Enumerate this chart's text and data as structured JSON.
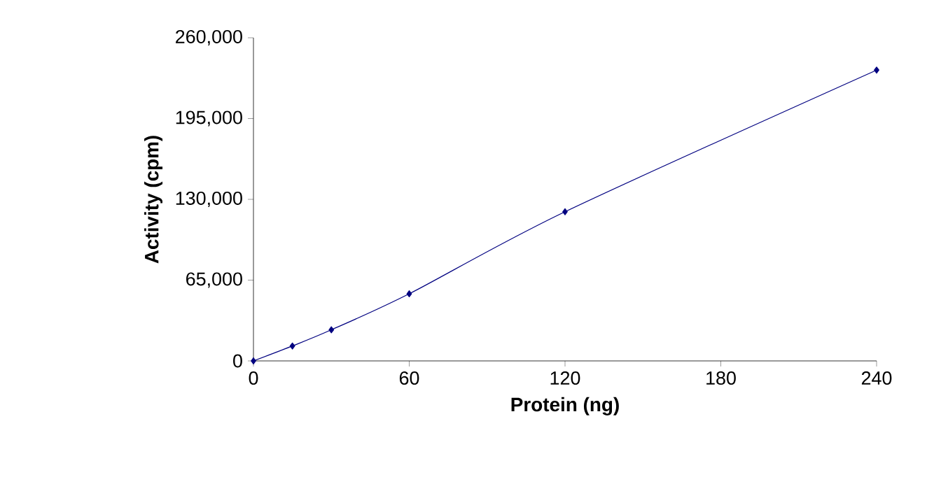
{
  "chart_data": {
    "type": "line",
    "xlabel": "Protein (ng)",
    "ylabel": "Activity (cpm)",
    "x": [
      0,
      15,
      30,
      60,
      120,
      240
    ],
    "series": [
      {
        "color": "#000080",
        "values": [
          0,
          12000,
          25000,
          54000,
          120000,
          234000
        ]
      }
    ],
    "xlim": [
      0,
      240
    ],
    "ylim": [
      0,
      260000
    ],
    "xticks": [
      0,
      60,
      120,
      180,
      240
    ],
    "yticks": [
      {
        "value": 0,
        "label": "0"
      },
      {
        "value": 65000,
        "label": "65,000"
      },
      {
        "value": 130000,
        "label": "130,000"
      },
      {
        "value": 195000,
        "label": "195,000"
      },
      {
        "value": 260000,
        "label": "260,000"
      }
    ],
    "marker": "diamond",
    "line_style": "solid",
    "grid": false
  }
}
